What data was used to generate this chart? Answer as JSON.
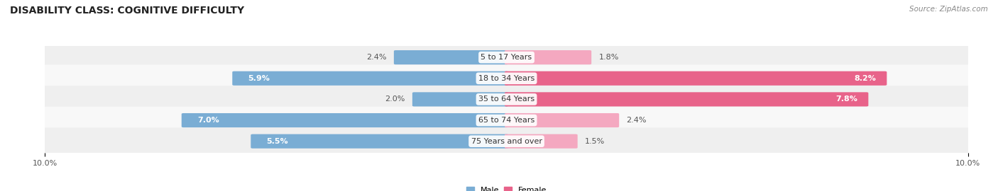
{
  "title": "DISABILITY CLASS: COGNITIVE DIFFICULTY",
  "source": "Source: ZipAtlas.com",
  "categories": [
    "5 to 17 Years",
    "18 to 34 Years",
    "35 to 64 Years",
    "65 to 74 Years",
    "75 Years and over"
  ],
  "male_values": [
    2.4,
    5.9,
    2.0,
    7.0,
    5.5
  ],
  "female_values": [
    1.8,
    8.2,
    7.8,
    2.4,
    1.5
  ],
  "male_color": "#7aadd4",
  "female_color_large": "#e8638a",
  "female_color_small": "#f4a8c0",
  "female_threshold": 4.0,
  "male_label": "Male",
  "female_label": "Female",
  "x_max": 10.0,
  "x_min": -10.0,
  "row_bg_odd": "#efefef",
  "row_bg_even": "#f8f8f8",
  "title_fontsize": 10,
  "label_fontsize": 8,
  "value_fontsize": 8,
  "tick_fontsize": 8,
  "background_color": "#ffffff"
}
